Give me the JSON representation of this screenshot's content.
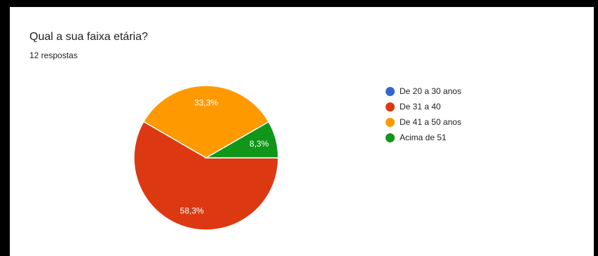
{
  "header": {
    "title": "Qual a sua faixa etária?",
    "response_count": "12 respostas"
  },
  "chart_data": {
    "type": "pie",
    "title": "Qual a sua faixa etária?",
    "subtitle": "12 respostas",
    "legend_position": "right",
    "categories": [
      "De 20 a 30 anos",
      "De 31 a 40",
      "De 41 a 50 anos",
      "Acima de 51"
    ],
    "values": [
      0,
      58.3,
      33.3,
      8.3
    ],
    "labels": [
      "",
      "58,3%",
      "33,3%",
      "8,3%"
    ],
    "colors": [
      "#3366cc",
      "#dc3912",
      "#ff9900",
      "#109618"
    ]
  }
}
